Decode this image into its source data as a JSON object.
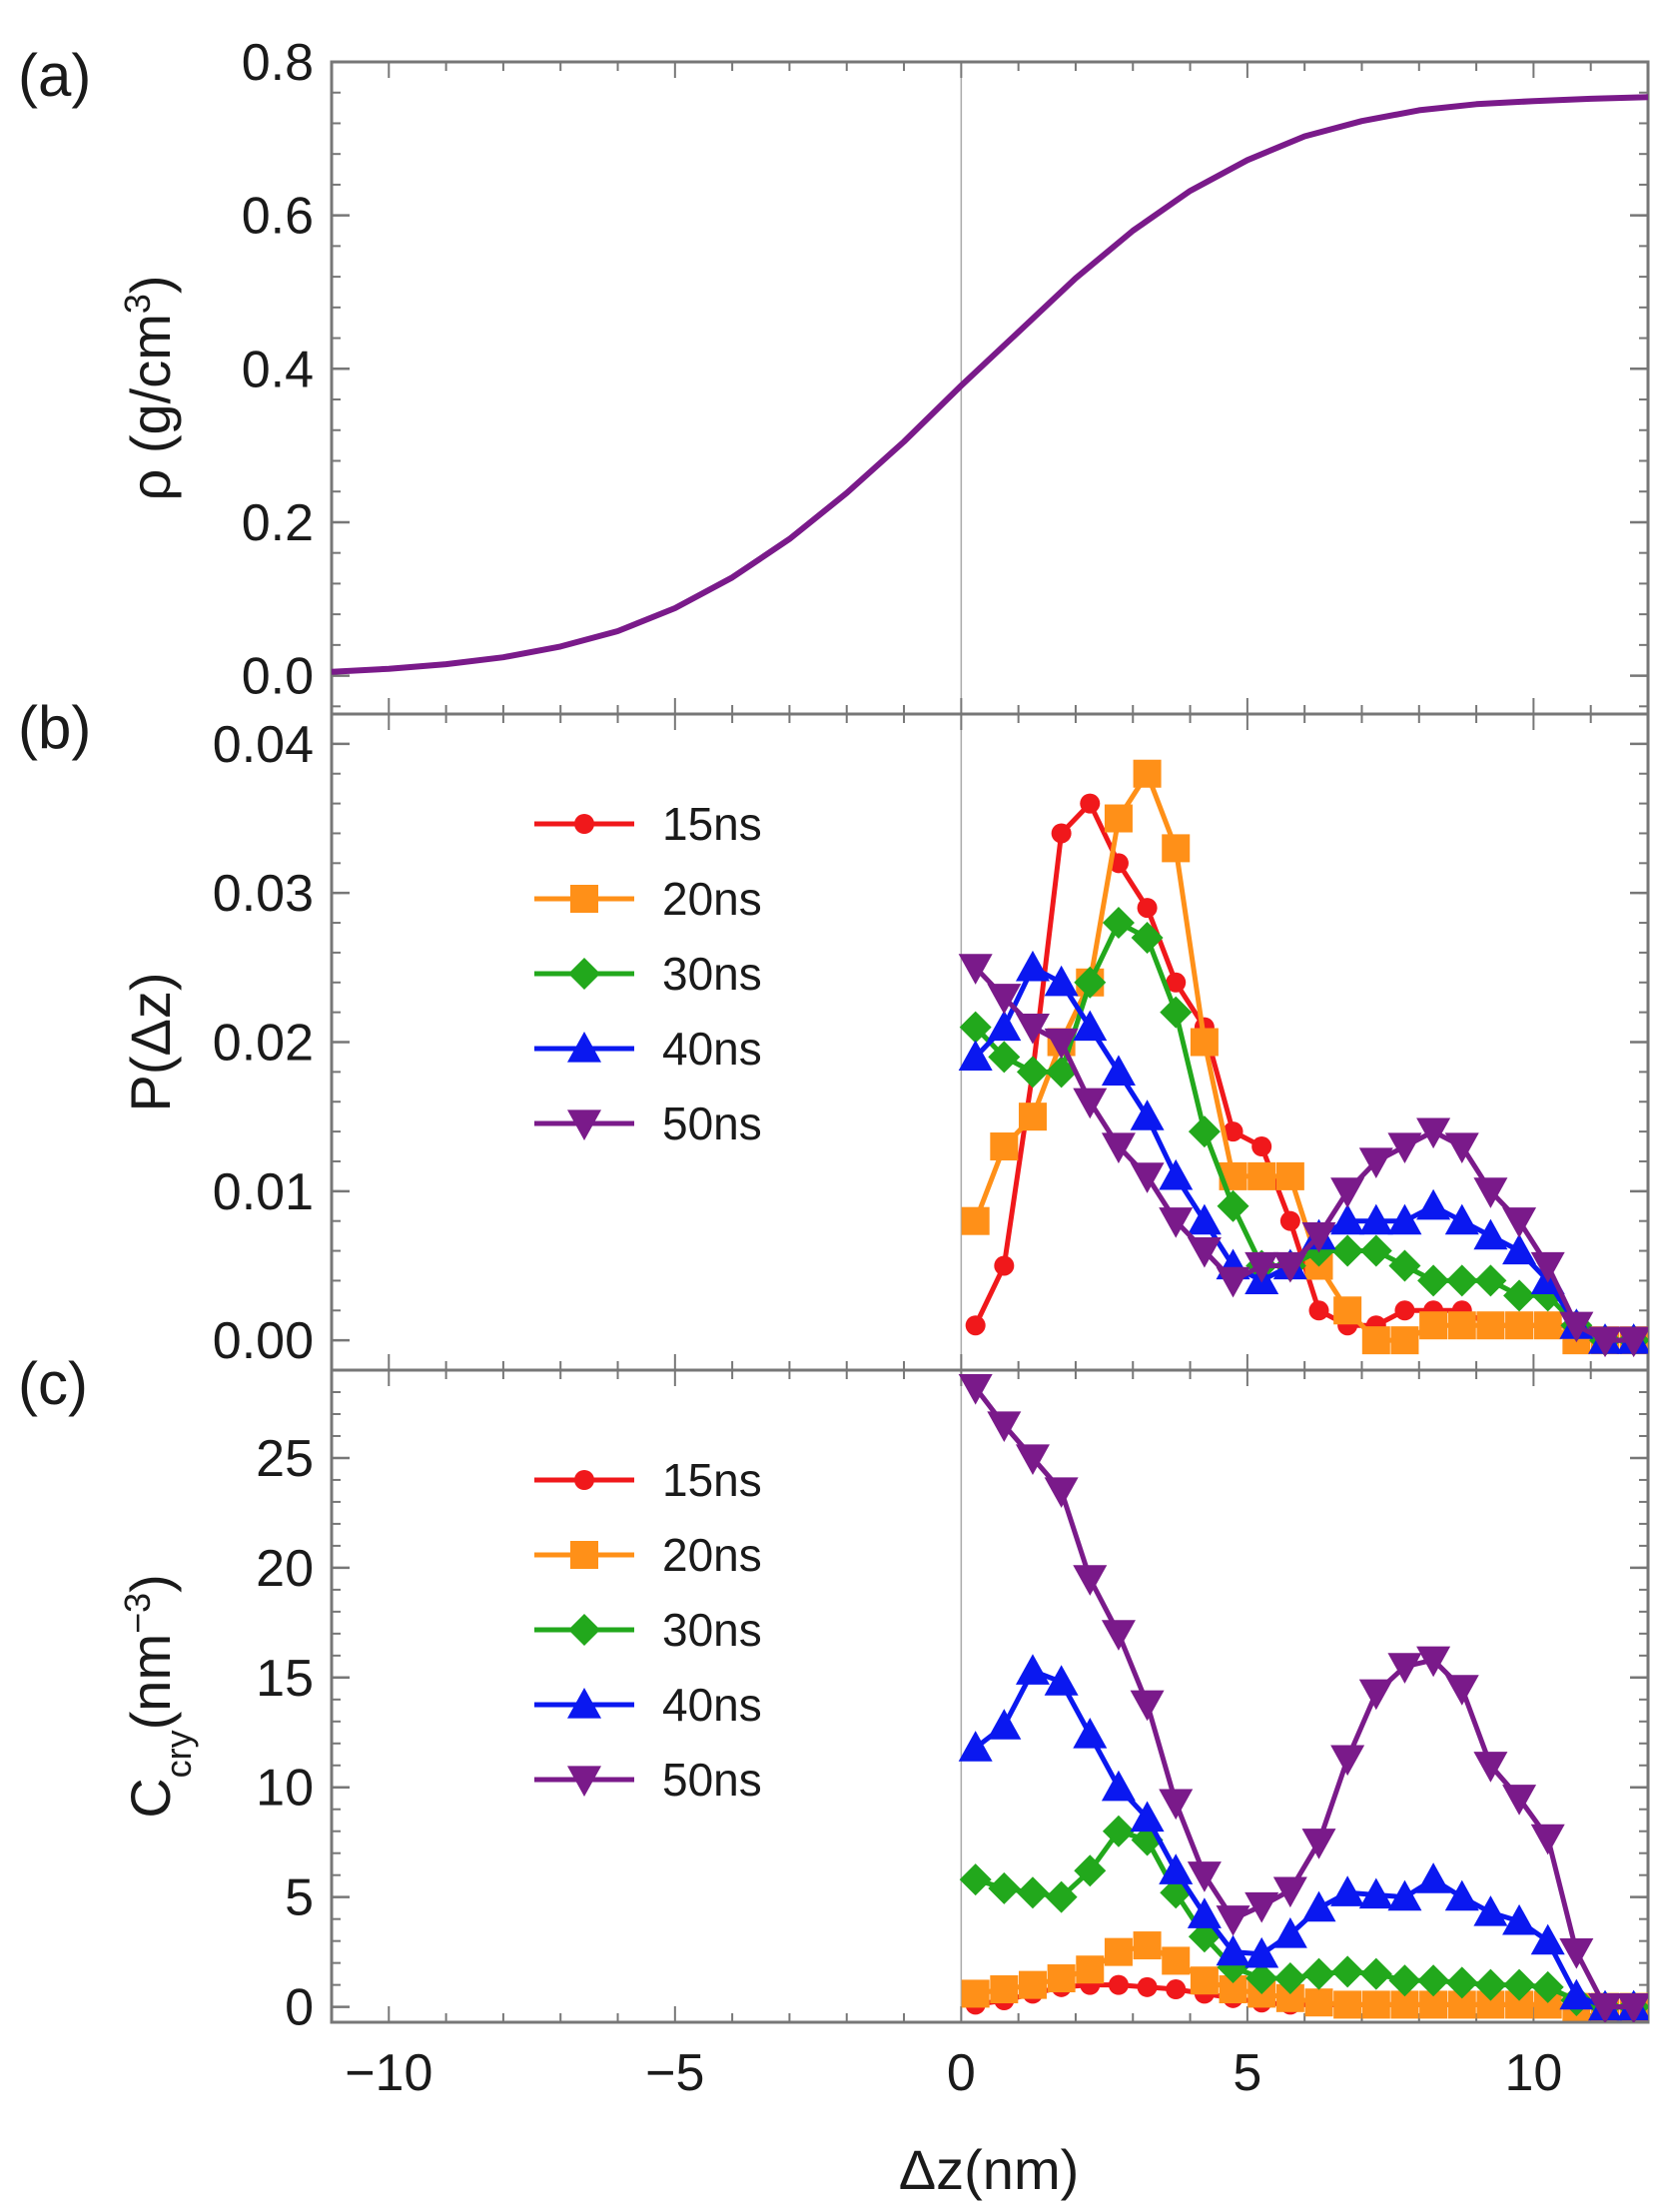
{
  "colors": {
    "15ns": "#f0181b",
    "20ns": "#ff9018",
    "30ns": "#22a81c",
    "40ns": "#0a18f0",
    "50ns": "#7a1a8a",
    "density": "#7a1a8a",
    "frame": "#777777",
    "zeroline": "#aaaaaa"
  },
  "x_axis": {
    "label": "Δz(nm)",
    "range": [
      -11,
      12
    ],
    "ticks": [
      -10,
      -5,
      0,
      5,
      10
    ],
    "tick_labels": [
      "−10",
      "−5",
      "0",
      "5",
      "10"
    ]
  },
  "chart_data": [
    {
      "panel": "(a)",
      "type": "line",
      "ylabel": "ρ (g/cm3)",
      "ylabel_main": "ρ (g/cm",
      "ylabel_sup": "3",
      "ylabel_close": ")",
      "ylim": [
        -0.05,
        0.8
      ],
      "yticks": [
        0.0,
        0.2,
        0.4,
        0.6,
        0.8
      ],
      "ytick_labels": [
        "0.0",
        "0.2",
        "0.4",
        "0.6",
        "0.8"
      ],
      "series": [
        {
          "name": "density",
          "x": [
            -11,
            -10,
            -9,
            -8,
            -7,
            -6,
            -5,
            -4,
            -3,
            -2,
            -1,
            0,
            1,
            2,
            3,
            4,
            5,
            6,
            7,
            8,
            9,
            10,
            11,
            12
          ],
          "y": [
            0.005,
            0.009,
            0.015,
            0.024,
            0.038,
            0.058,
            0.088,
            0.128,
            0.178,
            0.238,
            0.305,
            0.378,
            0.448,
            0.518,
            0.58,
            0.632,
            0.672,
            0.703,
            0.723,
            0.737,
            0.745,
            0.749,
            0.752,
            0.754
          ]
        }
      ]
    },
    {
      "panel": "(b)",
      "type": "line",
      "ylabel": "P(Δz)",
      "ylim": [
        -0.002,
        0.042
      ],
      "yticks": [
        0.0,
        0.01,
        0.02,
        0.03,
        0.04
      ],
      "ytick_labels": [
        "0.00",
        "0.01",
        "0.02",
        "0.03",
        "0.04"
      ],
      "legend": [
        "15ns",
        "20ns",
        "30ns",
        "40ns",
        "50ns"
      ],
      "series": [
        {
          "name": "15ns",
          "marker": "circle",
          "x": [
            0.25,
            0.75,
            1.25,
            1.75,
            2.25,
            2.75,
            3.25,
            3.75,
            4.25,
            4.75,
            5.25,
            5.75,
            6.25,
            6.75,
            7.25,
            7.75,
            8.25,
            8.75,
            9.25,
            9.75,
            10.25,
            10.75,
            11.25,
            11.75
          ],
          "y": [
            0.001,
            0.005,
            0.018,
            0.034,
            0.036,
            0.032,
            0.029,
            0.024,
            0.021,
            0.014,
            0.013,
            0.008,
            0.002,
            0.001,
            0.001,
            0.002,
            0.002,
            0.002,
            0.001,
            0.001,
            0.001,
            0.001,
            0.0,
            0.0
          ]
        },
        {
          "name": "20ns",
          "marker": "square",
          "x": [
            0.25,
            0.75,
            1.25,
            1.75,
            2.25,
            2.75,
            3.25,
            3.75,
            4.25,
            4.75,
            5.25,
            5.75,
            6.25,
            6.75,
            7.25,
            7.75,
            8.25,
            8.75,
            9.25,
            9.75,
            10.25,
            10.75,
            11.25,
            11.75
          ],
          "y": [
            0.008,
            0.013,
            0.015,
            0.02,
            0.024,
            0.035,
            0.038,
            0.033,
            0.02,
            0.011,
            0.011,
            0.011,
            0.005,
            0.002,
            0.0,
            0.0,
            0.001,
            0.001,
            0.001,
            0.001,
            0.001,
            0.0,
            0.0,
            0.0
          ]
        },
        {
          "name": "30ns",
          "marker": "diamond",
          "x": [
            0.25,
            0.75,
            1.25,
            1.75,
            2.25,
            2.75,
            3.25,
            3.75,
            4.25,
            4.75,
            5.25,
            5.75,
            6.25,
            6.75,
            7.25,
            7.75,
            8.25,
            8.75,
            9.25,
            9.75,
            10.25,
            10.75,
            11.25,
            11.75
          ],
          "y": [
            0.021,
            0.019,
            0.018,
            0.018,
            0.024,
            0.028,
            0.027,
            0.022,
            0.014,
            0.009,
            0.005,
            0.005,
            0.006,
            0.006,
            0.006,
            0.005,
            0.004,
            0.004,
            0.004,
            0.003,
            0.003,
            0.001,
            0.0,
            0.0
          ]
        },
        {
          "name": "40ns",
          "marker": "triangle-up",
          "x": [
            0.25,
            0.75,
            1.25,
            1.75,
            2.25,
            2.75,
            3.25,
            3.75,
            4.25,
            4.75,
            5.25,
            5.75,
            6.25,
            6.75,
            7.25,
            7.75,
            8.25,
            8.75,
            9.25,
            9.75,
            10.25,
            10.75,
            11.25,
            11.75
          ],
          "y": [
            0.019,
            0.021,
            0.025,
            0.024,
            0.021,
            0.018,
            0.015,
            0.011,
            0.008,
            0.005,
            0.004,
            0.005,
            0.007,
            0.008,
            0.008,
            0.008,
            0.009,
            0.008,
            0.007,
            0.006,
            0.004,
            0.001,
            0.0,
            0.0
          ]
        },
        {
          "name": "50ns",
          "marker": "triangle-down",
          "x": [
            0.25,
            0.75,
            1.25,
            1.75,
            2.25,
            2.75,
            3.25,
            3.75,
            4.25,
            4.75,
            5.25,
            5.75,
            6.25,
            6.75,
            7.25,
            7.75,
            8.25,
            8.75,
            9.25,
            9.75,
            10.25,
            10.75,
            11.25,
            11.75
          ],
          "y": [
            0.025,
            0.023,
            0.021,
            0.02,
            0.016,
            0.013,
            0.011,
            0.008,
            0.006,
            0.004,
            0.005,
            0.005,
            0.007,
            0.01,
            0.012,
            0.013,
            0.014,
            0.013,
            0.01,
            0.008,
            0.005,
            0.001,
            0.0,
            0.0
          ]
        }
      ]
    },
    {
      "panel": "(c)",
      "type": "line",
      "ylabel": "Ccry(nm−3)",
      "ylabel_main": "C",
      "ylabel_sub": "cry",
      "ylabel_unit": "(nm",
      "ylabel_sup": "−3",
      "ylabel_close": ")",
      "ylim": [
        -0.7,
        29
      ],
      "yticks": [
        0,
        5,
        10,
        15,
        20,
        25
      ],
      "ytick_labels": [
        "0",
        "5",
        "10",
        "15",
        "20",
        "25"
      ],
      "legend": [
        "15ns",
        "20ns",
        "30ns",
        "40ns",
        "50ns"
      ],
      "series": [
        {
          "name": "15ns",
          "marker": "circle",
          "x": [
            0.25,
            0.75,
            1.25,
            1.75,
            2.25,
            2.75,
            3.25,
            3.75,
            4.25,
            4.75,
            5.25,
            5.75,
            6.25,
            6.75,
            7.25,
            7.75,
            8.25,
            8.75,
            9.25,
            9.75,
            10.25,
            10.75,
            11.25,
            11.75
          ],
          "y": [
            0.1,
            0.3,
            0.6,
            0.9,
            1.0,
            1.0,
            0.9,
            0.8,
            0.6,
            0.4,
            0.2,
            0.1,
            0.1,
            0.1,
            0.1,
            0.1,
            0.1,
            0.1,
            0.1,
            0.1,
            0.1,
            0.0,
            0.0,
            0.0
          ]
        },
        {
          "name": "20ns",
          "marker": "square",
          "x": [
            0.25,
            0.75,
            1.25,
            1.75,
            2.25,
            2.75,
            3.25,
            3.75,
            4.25,
            4.75,
            5.25,
            5.75,
            6.25,
            6.75,
            7.25,
            7.75,
            8.25,
            8.75,
            9.25,
            9.75,
            10.25,
            10.75,
            11.25,
            11.75
          ],
          "y": [
            0.6,
            0.8,
            1.0,
            1.3,
            1.7,
            2.5,
            2.8,
            2.1,
            1.2,
            0.8,
            0.6,
            0.4,
            0.2,
            0.1,
            0.1,
            0.1,
            0.1,
            0.1,
            0.1,
            0.1,
            0.1,
            0.0,
            0.0,
            0.0
          ]
        },
        {
          "name": "30ns",
          "marker": "diamond",
          "x": [
            0.25,
            0.75,
            1.25,
            1.75,
            2.25,
            2.75,
            3.25,
            3.75,
            4.25,
            4.75,
            5.25,
            5.75,
            6.25,
            6.75,
            7.25,
            7.75,
            8.25,
            8.75,
            9.25,
            9.75,
            10.25,
            10.75,
            11.25,
            11.75
          ],
          "y": [
            5.8,
            5.4,
            5.2,
            5.0,
            6.2,
            8.0,
            7.6,
            5.2,
            3.2,
            1.8,
            1.3,
            1.3,
            1.5,
            1.6,
            1.5,
            1.2,
            1.2,
            1.1,
            1.0,
            1.0,
            0.9,
            0.3,
            0.0,
            0.0
          ]
        },
        {
          "name": "40ns",
          "marker": "triangle-up",
          "x": [
            0.25,
            0.75,
            1.25,
            1.75,
            2.25,
            2.75,
            3.25,
            3.75,
            4.25,
            4.75,
            5.25,
            5.75,
            6.25,
            6.75,
            7.25,
            7.75,
            8.25,
            8.75,
            9.25,
            9.75,
            10.25,
            10.75,
            11.25,
            11.75
          ],
          "y": [
            11.8,
            12.8,
            15.3,
            14.8,
            12.4,
            10.0,
            8.6,
            6.2,
            4.2,
            2.5,
            2.4,
            3.3,
            4.5,
            5.2,
            5.1,
            5.0,
            5.8,
            5.0,
            4.3,
            3.9,
            3.0,
            0.5,
            0.0,
            0.0
          ]
        },
        {
          "name": "50ns",
          "marker": "triangle-down",
          "x": [
            0.25,
            0.75,
            1.25,
            1.75,
            2.25,
            2.75,
            3.25,
            3.75,
            4.25,
            4.75,
            5.25,
            5.75,
            6.25,
            6.75,
            7.25,
            7.75,
            8.25,
            8.75,
            9.25,
            9.75,
            10.25,
            10.75,
            11.25,
            11.75
          ],
          "y": [
            28.2,
            26.5,
            25.0,
            23.5,
            19.5,
            17.0,
            13.8,
            9.3,
            6.0,
            4.0,
            4.6,
            5.3,
            7.5,
            11.3,
            14.3,
            15.5,
            15.8,
            14.5,
            11.0,
            9.5,
            7.7,
            2.5,
            0.0,
            0.0
          ]
        }
      ]
    }
  ]
}
